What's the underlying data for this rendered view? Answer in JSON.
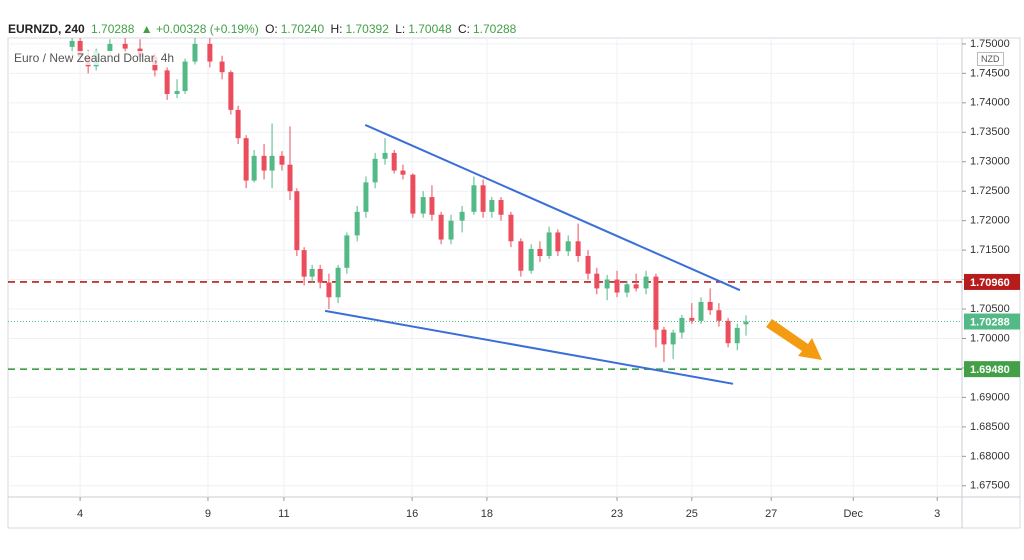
{
  "header": {
    "symbol": "EURNZD, 240",
    "last": "1.70288",
    "change": "▲ +0.00328 (+0.19%)",
    "ohlc": [
      {
        "label": "O:",
        "value": "1.70240"
      },
      {
        "label": "H:",
        "value": "1.70392"
      },
      {
        "label": "L:",
        "value": "1.70048"
      },
      {
        "label": "C:",
        "value": "1.70288"
      }
    ],
    "currency": "NZD"
  },
  "chart_data": {
    "type": "candlestick",
    "title": "Euro / New Zealand Dollar, 4h",
    "up_color": "#53b987",
    "down_color": "#eb4d5c",
    "grid": true,
    "xlim": [
      0,
      25
    ],
    "xticks": [
      {
        "value": 1.89,
        "label": "4"
      },
      {
        "value": 5.24,
        "label": "9"
      },
      {
        "value": 7.23,
        "label": "11"
      },
      {
        "value": 10.59,
        "label": "16"
      },
      {
        "value": 12.55,
        "label": "18"
      },
      {
        "value": 15.96,
        "label": "23"
      },
      {
        "value": 17.92,
        "label": "25"
      },
      {
        "value": 20.0,
        "label": "27"
      },
      {
        "value": 22.15,
        "label": "Dec"
      },
      {
        "value": 24.35,
        "label": "3"
      }
    ],
    "ylim": [
      1.6731,
      1.751
    ],
    "yticks": [
      {
        "value": 1.75,
        "label": "1.75000"
      },
      {
        "value": 1.745,
        "label": "1.74500"
      },
      {
        "value": 1.74,
        "label": "1.74000"
      },
      {
        "value": 1.735,
        "label": "1.73500"
      },
      {
        "value": 1.73,
        "label": "1.73000"
      },
      {
        "value": 1.725,
        "label": "1.72500"
      },
      {
        "value": 1.72,
        "label": "1.72000"
      },
      {
        "value": 1.715,
        "label": "1.71500"
      },
      {
        "value": 1.71,
        "label": "1.71000"
      },
      {
        "value": 1.705,
        "label": "1.70500"
      },
      {
        "value": 1.7,
        "label": "1.70000"
      },
      {
        "value": 1.695,
        "label": "1.69500"
      },
      {
        "value": 1.69,
        "label": "1.69000"
      },
      {
        "value": 1.685,
        "label": "1.68500"
      },
      {
        "value": 1.68,
        "label": "1.68000"
      },
      {
        "value": 1.675,
        "label": "1.67500"
      }
    ],
    "x": [
      1.68,
      1.89,
      2.1,
      2.31,
      2.67,
      3.07,
      3.46,
      3.85,
      4.17,
      4.43,
      4.64,
      4.9,
      5.29,
      5.61,
      5.84,
      6.03,
      6.24,
      6.45,
      6.71,
      6.92,
      7.18,
      7.39,
      7.57,
      7.76,
      7.97,
      8.18,
      8.41,
      8.65,
      8.88,
      9.15,
      9.38,
      9.62,
      9.88,
      10.12,
      10.35,
      10.61,
      10.88,
      11.11,
      11.35,
      11.61,
      11.9,
      12.21,
      12.45,
      12.68,
      12.92,
      13.18,
      13.44,
      13.71,
      13.94,
      14.18,
      14.41,
      14.68,
      14.94,
      15.2,
      15.43,
      15.7,
      15.96,
      16.22,
      16.46,
      16.72,
      16.98,
      17.19,
      17.43,
      17.66,
      17.92,
      18.16,
      18.4,
      18.63,
      18.87,
      19.11,
      19.34
    ],
    "open": [
      1.7495,
      1.7505,
      1.7478,
      1.7462,
      1.7488,
      1.75,
      1.7492,
      1.7478,
      1.7455,
      1.7415,
      1.742,
      1.747,
      1.75,
      1.747,
      1.7452,
      1.7388,
      1.734,
      1.7268,
      1.731,
      1.7285,
      1.731,
      1.7295,
      1.725,
      1.715,
      1.7105,
      1.7118,
      1.7095,
      1.707,
      1.712,
      1.7175,
      1.7215,
      1.7265,
      1.7305,
      1.7315,
      1.7285,
      1.7278,
      1.7212,
      1.724,
      1.721,
      1.7168,
      1.72,
      1.7215,
      1.726,
      1.7215,
      1.7235,
      1.721,
      1.7165,
      1.7115,
      1.7152,
      1.714,
      1.718,
      1.7148,
      1.7165,
      1.714,
      1.711,
      1.7085,
      1.71,
      1.7078,
      1.7092,
      1.7085,
      1.7105,
      1.7015,
      1.699,
      1.701,
      1.7035,
      1.703,
      1.7062,
      1.7048,
      1.703,
      1.6992,
      1.7024
    ],
    "high": [
      1.751,
      1.751,
      1.749,
      1.7492,
      1.7508,
      1.751,
      1.7508,
      1.7485,
      1.746,
      1.744,
      1.7475,
      1.751,
      1.751,
      1.748,
      1.7455,
      1.7395,
      1.7345,
      1.732,
      1.733,
      1.7365,
      1.7318,
      1.736,
      1.7255,
      1.7155,
      1.7125,
      1.7125,
      1.711,
      1.7125,
      1.718,
      1.7225,
      1.7275,
      1.7315,
      1.734,
      1.732,
      1.7295,
      1.728,
      1.725,
      1.726,
      1.7215,
      1.721,
      1.7225,
      1.7275,
      1.727,
      1.724,
      1.724,
      1.7215,
      1.717,
      1.716,
      1.7165,
      1.719,
      1.7185,
      1.7175,
      1.7195,
      1.715,
      1.712,
      1.7108,
      1.7115,
      1.7098,
      1.711,
      1.7115,
      1.711,
      1.702,
      1.7015,
      1.704,
      1.706,
      1.707,
      1.7085,
      1.706,
      1.7035,
      1.7025,
      1.70392
    ],
    "low": [
      1.748,
      1.747,
      1.745,
      1.7455,
      1.748,
      1.7485,
      1.747,
      1.7445,
      1.7405,
      1.7408,
      1.7415,
      1.7465,
      1.746,
      1.744,
      1.738,
      1.733,
      1.7255,
      1.7265,
      1.727,
      1.7255,
      1.7285,
      1.7235,
      1.714,
      1.709,
      1.7095,
      1.7085,
      1.705,
      1.706,
      1.711,
      1.7165,
      1.7205,
      1.7255,
      1.7295,
      1.728,
      1.727,
      1.7205,
      1.7205,
      1.72,
      1.716,
      1.716,
      1.718,
      1.721,
      1.7205,
      1.7205,
      1.72,
      1.7155,
      1.7105,
      1.711,
      1.713,
      1.7135,
      1.714,
      1.714,
      1.713,
      1.71,
      1.7075,
      1.7065,
      1.707,
      1.707,
      1.708,
      1.7075,
      1.6985,
      1.696,
      1.6965,
      1.7,
      1.7025,
      1.7025,
      1.704,
      1.702,
      1.6985,
      1.698,
      1.70048
    ],
    "close": [
      1.7505,
      1.7478,
      1.7462,
      1.7488,
      1.75,
      1.7492,
      1.7478,
      1.7455,
      1.7415,
      1.742,
      1.747,
      1.75,
      1.747,
      1.7452,
      1.7388,
      1.734,
      1.7268,
      1.731,
      1.7285,
      1.731,
      1.7295,
      1.725,
      1.715,
      1.7105,
      1.7118,
      1.7095,
      1.707,
      1.712,
      1.7175,
      1.7215,
      1.7265,
      1.7305,
      1.7315,
      1.7285,
      1.7278,
      1.7212,
      1.724,
      1.721,
      1.7168,
      1.72,
      1.7215,
      1.726,
      1.7215,
      1.7235,
      1.721,
      1.7165,
      1.7115,
      1.7152,
      1.714,
      1.718,
      1.7148,
      1.7165,
      1.714,
      1.711,
      1.7085,
      1.71,
      1.7078,
      1.7092,
      1.7085,
      1.7105,
      1.7015,
      1.699,
      1.701,
      1.7035,
      1.703,
      1.7062,
      1.7048,
      1.703,
      1.6992,
      1.7018,
      1.70288
    ],
    "levels": [
      {
        "value": 1.7096,
        "label": "1.70960",
        "color": "#b71c1c",
        "style": "dashed"
      },
      {
        "value": 1.6948,
        "label": "1.69480",
        "color": "#43a047",
        "style": "dashed"
      },
      {
        "value": 1.70288,
        "label": "1.70288",
        "color": "#53b987",
        "style": "dotted"
      }
    ],
    "trendlines": [
      {
        "x": [
          9.36,
          19.18
        ],
        "y": [
          1.73625,
          1.7082
        ],
        "color": "#3a6fd8"
      },
      {
        "x": [
          8.31,
          19.0
        ],
        "y": [
          1.70469,
          1.69231
        ],
        "color": "#3a6fd8"
      }
    ]
  }
}
